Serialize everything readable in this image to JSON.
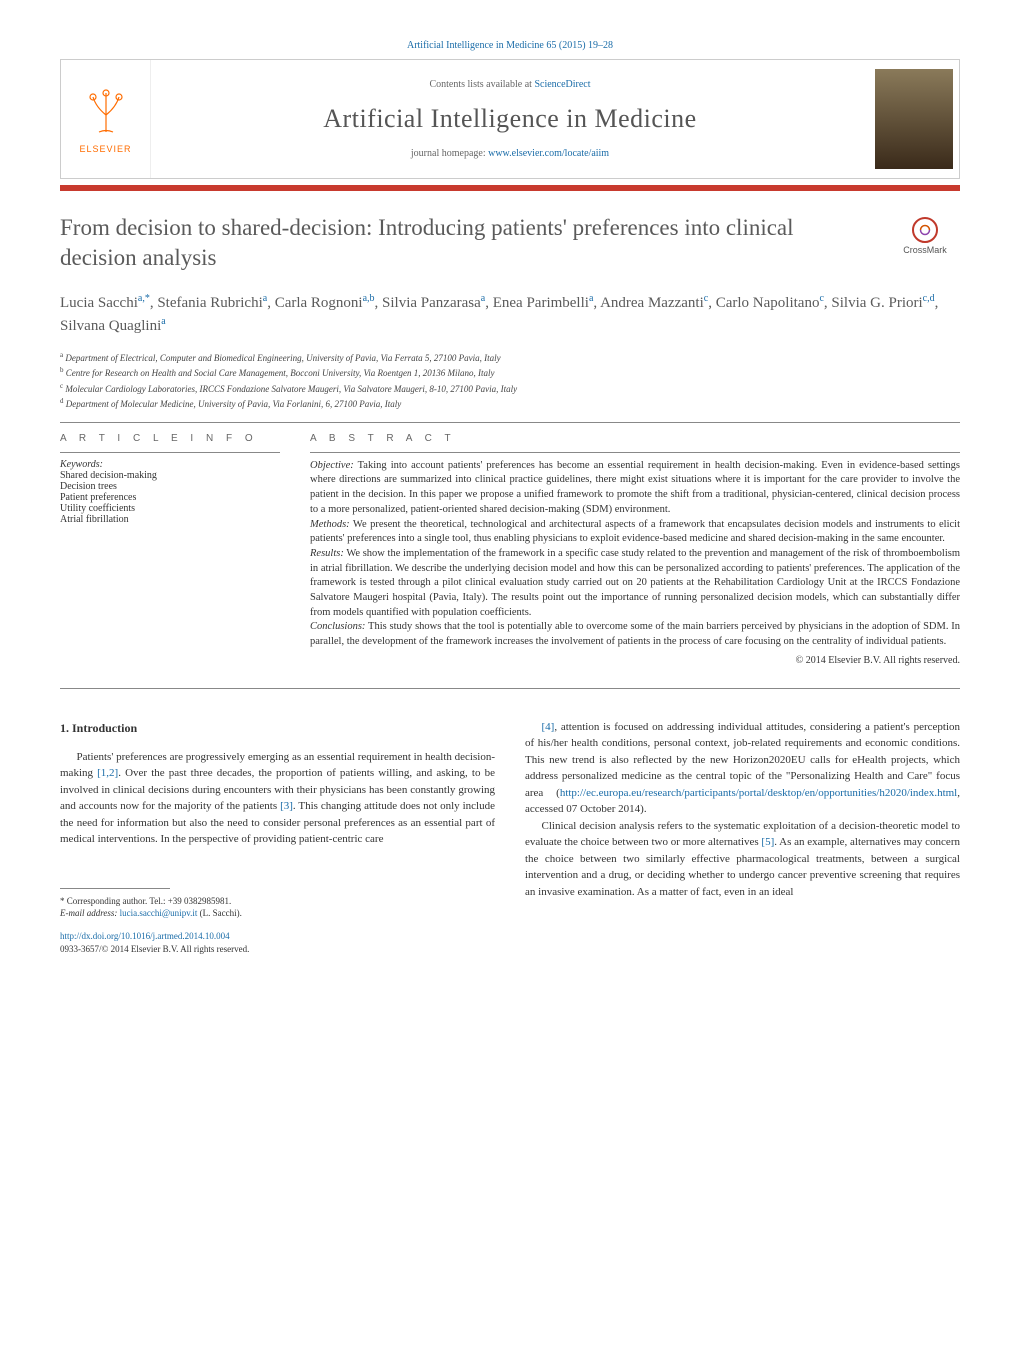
{
  "header": {
    "citation": "Artificial Intelligence in Medicine 65 (2015) 19–28",
    "contents_prefix": "Contents lists available at ",
    "contents_link": "ScienceDirect",
    "journal_name": "Artificial Intelligence in Medicine",
    "homepage_prefix": "journal homepage: ",
    "homepage_url": "www.elsevier.com/locate/aiim",
    "publisher_name": "ELSEVIER"
  },
  "crossmark": {
    "label": "CrossMark"
  },
  "article": {
    "title": "From decision to shared-decision: Introducing patients' preferences into clinical decision analysis",
    "authors_html": "Lucia Sacchi<sup>a,*</sup>, Stefania Rubrichi<sup>a</sup>, Carla Rognoni<sup>a,b</sup>, Silvia Panzarasa<sup>a</sup>, Enea Parimbelli<sup>a</sup>, Andrea Mazzanti<sup>c</sup>, Carlo Napolitano<sup>c</sup>, Silvia G. Priori<sup>c,d</sup>, Silvana Quaglini<sup>a</sup>",
    "affiliations": [
      {
        "sup": "a",
        "text": "Department of Electrical, Computer and Biomedical Engineering, University of Pavia, Via Ferrata 5, 27100 Pavia, Italy"
      },
      {
        "sup": "b",
        "text": "Centre for Research on Health and Social Care Management, Bocconi University, Via Roentgen 1, 20136 Milano, Italy"
      },
      {
        "sup": "c",
        "text": "Molecular Cardiology Laboratories, IRCCS Fondazione Salvatore Maugeri, Via Salvatore Maugeri, 8-10, 27100 Pavia, Italy"
      },
      {
        "sup": "d",
        "text": "Department of Molecular Medicine, University of Pavia, Via Forlanini, 6, 27100 Pavia, Italy"
      }
    ]
  },
  "info": {
    "article_info_label": "A R T I C L E   I N F O",
    "keywords_label": "Keywords:",
    "keywords": [
      "Shared decision-making",
      "Decision trees",
      "Patient preferences",
      "Utility coefficients",
      "Atrial fibrillation"
    ]
  },
  "abstract": {
    "label": "A B S T R A C T",
    "objective": "Objective: Taking into account patients' preferences has become an essential requirement in health decision-making. Even in evidence-based settings where directions are summarized into clinical practice guidelines, there might exist situations where it is important for the care provider to involve the patient in the decision. In this paper we propose a unified framework to promote the shift from a traditional, physician-centered, clinical decision process to a more personalized, patient-oriented shared decision-making (SDM) environment.",
    "methods": "Methods: We present the theoretical, technological and architectural aspects of a framework that encapsulates decision models and instruments to elicit patients' preferences into a single tool, thus enabling physicians to exploit evidence-based medicine and shared decision-making in the same encounter.",
    "results": "Results: We show the implementation of the framework in a specific case study related to the prevention and management of the risk of thromboembolism in atrial fibrillation. We describe the underlying decision model and how this can be personalized according to patients' preferences. The application of the framework is tested through a pilot clinical evaluation study carried out on 20 patients at the Rehabilitation Cardiology Unit at the IRCCS Fondazione Salvatore Maugeri hospital (Pavia, Italy). The results point out the importance of running personalized decision models, which can substantially differ from models quantified with population coefficients.",
    "conclusions": "Conclusions: This study shows that the tool is potentially able to overcome some of the main barriers perceived by physicians in the adoption of SDM. In parallel, the development of the framework increases the involvement of patients in the process of care focusing on the centrality of individual patients.",
    "copyright": "© 2014 Elsevier B.V. All rights reserved."
  },
  "body": {
    "section_heading": "1.   Introduction",
    "col1_p1": "Patients' preferences are progressively emerging as an essential requirement in health decision-making [1,2]. Over the past three decades, the proportion of patients willing, and asking, to be involved in clinical decisions during encounters with their physicians has been constantly growing and accounts now for the majority of the patients [3]. This changing attitude does not only include the need for information but also the need to consider personal preferences as an essential part of medical interventions. In the perspective of providing patient-centric care",
    "col2_p1": "[4], attention is focused on addressing individual attitudes, considering a patient's perception of his/her health conditions, personal context, job-related requirements and economic conditions. This new trend is also reflected by the new Horizon2020EU calls for eHealth projects, which address personalized medicine as the central topic of the \"Personalizing Health and Care\" focus area (http://ec.europa.eu/research/participants/portal/desktop/en/opportunities/h2020/index.html, accessed 07 October 2014).",
    "col2_p2": "Clinical decision analysis refers to the systematic exploitation of a decision-theoretic model to evaluate the choice between two or more alternatives [5]. As an example, alternatives may concern the choice between two similarly effective pharmacological treatments, between a surgical intervention and a drug, or deciding whether to undergo cancer preventive screening that requires an invasive examination. As a matter of fact, even in an ideal"
  },
  "footnote": {
    "corresponding": "* Corresponding author. Tel.: +39 0382985981.",
    "email_label": "E-mail address: ",
    "email": "lucia.sacchi@unipv.it",
    "email_suffix": " (L. Sacchi)."
  },
  "doi": {
    "url": "http://dx.doi.org/10.1016/j.artmed.2014.10.004",
    "issn_line": "0933-3657/© 2014 Elsevier B.V. All rights reserved."
  },
  "colors": {
    "link": "#1a6ca8",
    "accent_red": "#c83a2e",
    "text_gray": "#5a5a5a"
  }
}
